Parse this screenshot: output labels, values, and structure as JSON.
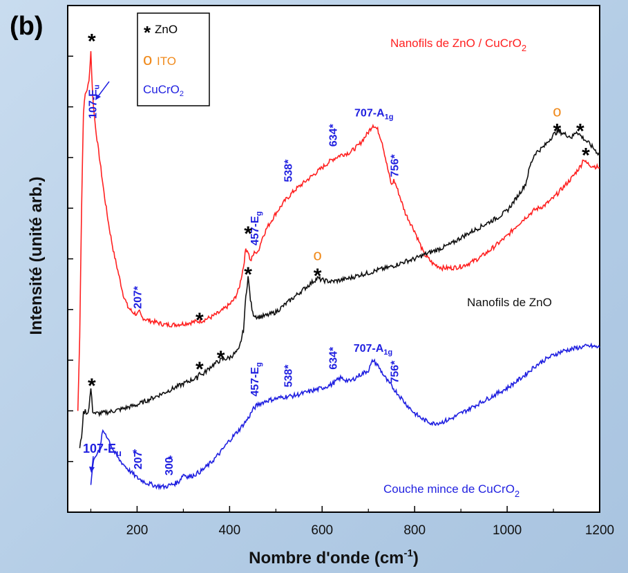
{
  "chart_data": {
    "type": "line",
    "panel_label": "(b)",
    "xlabel": "Nombre d'onde (cm",
    "xlabel_sup": "-1",
    "xlabel_end": ")",
    "ylabel": "Intensité (unité arb.)",
    "xlim": [
      50,
      1200
    ],
    "ylim": [
      0,
      10
    ],
    "xticks": [
      200,
      400,
      600,
      800,
      1000,
      1200
    ],
    "legend": {
      "placement": "top-left",
      "entries": [
        {
          "symbol": "*",
          "text": "ZnO",
          "color": "#000000"
        },
        {
          "symbol": "o",
          "text": "ITO",
          "color": "#f08a1c"
        },
        {
          "symbol": "",
          "text": "CuCrO",
          "sub": "2",
          "color": "#1f1fe0"
        }
      ]
    },
    "series": [
      {
        "name": "Nanofils de ZnO / CuCrO",
        "name_sub": "2",
        "color": "#ff2020",
        "x": [
          72,
          76,
          80,
          84,
          88,
          92,
          96,
          100,
          104,
          110,
          120,
          130,
          140,
          150,
          160,
          170,
          180,
          190,
          200,
          205,
          210,
          220,
          240,
          260,
          280,
          300,
          320,
          340,
          360,
          380,
          400,
          410,
          420,
          430,
          435,
          440,
          445,
          450,
          455,
          460,
          470,
          480,
          500,
          520,
          540,
          560,
          580,
          600,
          620,
          640,
          660,
          680,
          700,
          710,
          720,
          730,
          740,
          750,
          755,
          760,
          780,
          800,
          820,
          840,
          860,
          880,
          900,
          920,
          940,
          960,
          980,
          1000,
          1020,
          1040,
          1060,
          1080,
          1100,
          1120,
          1140,
          1160,
          1165,
          1170,
          1180,
          1200
        ],
        "y": [
          2.0,
          3.5,
          6.0,
          7.9,
          8.25,
          8.35,
          8.5,
          9.1,
          8.2,
          7.6,
          6.9,
          6.2,
          5.6,
          5.1,
          4.7,
          4.3,
          4.05,
          3.95,
          3.9,
          3.95,
          3.85,
          3.8,
          3.75,
          3.7,
          3.7,
          3.72,
          3.75,
          3.78,
          3.85,
          3.95,
          4.1,
          4.2,
          4.4,
          4.85,
          5.2,
          5.15,
          4.95,
          5.05,
          5.15,
          5.1,
          5.4,
          5.6,
          5.9,
          6.15,
          6.35,
          6.5,
          6.65,
          6.8,
          6.95,
          7.05,
          7.1,
          7.25,
          7.5,
          7.65,
          7.55,
          7.3,
          6.85,
          6.45,
          6.55,
          6.45,
          5.9,
          5.55,
          5.1,
          4.9,
          4.82,
          4.82,
          4.85,
          4.92,
          5.02,
          5.15,
          5.3,
          5.45,
          5.65,
          5.82,
          5.97,
          6.05,
          6.2,
          6.4,
          6.6,
          6.85,
          6.98,
          6.9,
          6.85,
          6.8
        ],
        "annotations": [
          {
            "x": 112,
            "text": "107-E",
            "sub": "u",
            "vertical": true
          },
          {
            "x": 209,
            "text": "207*",
            "vertical": true
          },
          {
            "x": 462,
            "text": "457-E",
            "sub": "g",
            "vertical": true
          },
          {
            "x": 535,
            "text": "538*",
            "vertical": true
          },
          {
            "x": 632,
            "text": "634*",
            "vertical": true
          },
          {
            "x": 712,
            "text": "707-A",
            "sub": "1g",
            "vertical": false
          },
          {
            "x": 765,
            "text": "756*",
            "vertical": true
          }
        ]
      },
      {
        "name": "Nanofils de ZnO",
        "color": "#111111",
        "x": [
          76,
          80,
          84,
          88,
          92,
          96,
          100,
          104,
          110,
          120,
          140,
          160,
          200,
          240,
          280,
          320,
          330,
          335,
          340,
          360,
          380,
          400,
          420,
          430,
          435,
          440,
          445,
          450,
          460,
          480,
          500,
          520,
          540,
          560,
          580,
          590,
          600,
          620,
          640,
          660,
          680,
          700,
          720,
          740,
          760,
          780,
          800,
          820,
          840,
          860,
          880,
          900,
          920,
          940,
          960,
          980,
          1000,
          1020,
          1040,
          1050,
          1060,
          1080,
          1100,
          1110,
          1120,
          1140,
          1150,
          1160,
          1180,
          1200
        ],
        "y": [
          1.25,
          1.5,
          1.95,
          2.0,
          1.95,
          2.05,
          2.45,
          2.0,
          1.95,
          1.95,
          1.98,
          2.02,
          2.12,
          2.28,
          2.45,
          2.62,
          2.65,
          2.78,
          2.7,
          2.88,
          3.0,
          3.05,
          3.2,
          3.6,
          4.25,
          4.65,
          4.2,
          3.92,
          3.85,
          3.88,
          3.95,
          4.1,
          4.25,
          4.4,
          4.55,
          4.62,
          4.58,
          4.55,
          4.58,
          4.62,
          4.68,
          4.72,
          4.78,
          4.82,
          4.88,
          4.95,
          5.0,
          5.08,
          5.15,
          5.22,
          5.3,
          5.42,
          5.52,
          5.62,
          5.72,
          5.82,
          5.95,
          6.2,
          6.48,
          6.85,
          7.08,
          7.22,
          7.45,
          7.52,
          7.48,
          7.4,
          7.52,
          7.42,
          7.25,
          7.05
        ],
        "annotations": []
      },
      {
        "name": "Couche mince de CuCrO",
        "name_sub": "2",
        "color": "#1f1fe0",
        "x": [
          100,
          104,
          108,
          112,
          118,
          126,
          132,
          140,
          150,
          160,
          180,
          200,
          220,
          240,
          260,
          280,
          290,
          300,
          310,
          320,
          340,
          360,
          380,
          400,
          420,
          440,
          450,
          460,
          480,
          500,
          520,
          540,
          560,
          580,
          600,
          620,
          640,
          660,
          680,
          700,
          710,
          720,
          740,
          760,
          780,
          800,
          820,
          840,
          860,
          880,
          900,
          920,
          940,
          960,
          980,
          1000,
          1020,
          1040,
          1060,
          1080,
          1100,
          1120,
          1140,
          1160,
          1180,
          1200
        ],
        "y": [
          0.55,
          0.9,
          1.1,
          1.15,
          1.2,
          1.6,
          1.55,
          1.4,
          1.2,
          1.05,
          0.85,
          0.68,
          0.58,
          0.52,
          0.5,
          0.56,
          0.6,
          0.75,
          0.7,
          0.72,
          0.82,
          0.98,
          1.18,
          1.42,
          1.62,
          1.85,
          2.02,
          2.12,
          2.2,
          2.24,
          2.28,
          2.3,
          2.35,
          2.4,
          2.45,
          2.52,
          2.65,
          2.58,
          2.7,
          2.8,
          3.0,
          2.9,
          2.6,
          2.38,
          2.15,
          1.95,
          1.82,
          1.75,
          1.78,
          1.85,
          1.95,
          2.05,
          2.15,
          2.25,
          2.35,
          2.45,
          2.58,
          2.72,
          2.88,
          3.0,
          3.1,
          3.18,
          3.22,
          3.26,
          3.28,
          3.25
        ],
        "annotations": [
          {
            "x": 195,
            "text": "*",
            "vertical": false
          },
          {
            "x": 210,
            "text": "207",
            "vertical": true
          },
          {
            "x": 272,
            "text": "*",
            "vertical": false
          },
          {
            "x": 277,
            "text": "300",
            "vertical": true
          },
          {
            "x": 462,
            "text": "457-E",
            "sub": "g",
            "vertical": true
          },
          {
            "x": 535,
            "text": "538*",
            "vertical": true
          },
          {
            "x": 632,
            "text": "634*",
            "vertical": true
          },
          {
            "x": 710,
            "text": "707-A",
            "sub": "1g",
            "vertical": false
          },
          {
            "x": 765,
            "text": "756*",
            "vertical": true
          }
        ]
      }
    ],
    "zno_markers": [
      {
        "x": 102,
        "y": 9.35
      },
      {
        "x": 335,
        "y": 3.85
      },
      {
        "x": 440,
        "y": 5.55
      },
      {
        "x": 1170,
        "y": 7.1
      },
      {
        "x": 102,
        "y": 2.55
      },
      {
        "x": 335,
        "y": 2.88
      },
      {
        "x": 381,
        "y": 3.1
      },
      {
        "x": 440,
        "y": 4.75
      },
      {
        "x": 590,
        "y": 4.72
      },
      {
        "x": 1108,
        "y": 7.58
      },
      {
        "x": 1158,
        "y": 7.58
      }
    ],
    "ito_markers": [
      {
        "x": 590,
        "y": 5.08
      },
      {
        "x": 1108,
        "y": 7.92
      }
    ]
  }
}
